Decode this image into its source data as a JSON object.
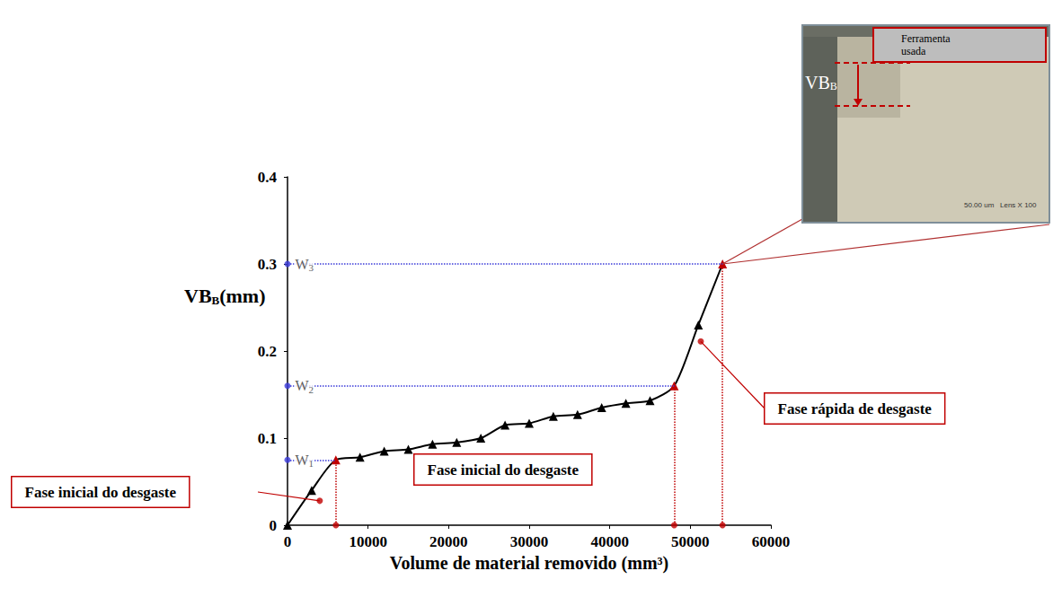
{
  "chart_data": {
    "type": "line",
    "xlabel": "Volume de material removido (mm³)",
    "ylabel": "VB",
    "ylabel_subscript": "B",
    "ylabel_unit": "(mm)",
    "x": [
      0,
      3000,
      6000,
      9000,
      12000,
      15000,
      18000,
      21000,
      24000,
      27000,
      30000,
      33000,
      36000,
      39000,
      42000,
      45000,
      48000,
      51000,
      54000
    ],
    "values": [
      0,
      0.04,
      0.075,
      0.078,
      0.085,
      0.087,
      0.093,
      0.095,
      0.1,
      0.115,
      0.117,
      0.125,
      0.127,
      0.135,
      0.14,
      0.143,
      0.16,
      0.23,
      0.3
    ],
    "color": "#000000",
    "marker": "triangle",
    "line_style": "solid",
    "xlim": [
      0,
      60000
    ],
    "xticks": [
      0,
      10000,
      20000,
      30000,
      40000,
      50000,
      60000
    ],
    "ylim": [
      0,
      0.4
    ],
    "yticks": [
      0,
      0.1,
      0.2,
      0.3,
      0.4
    ],
    "grid": false,
    "thresholds": [
      {
        "name": "W",
        "subscript": "1",
        "value": 0.075,
        "x": 6000
      },
      {
        "name": "W",
        "subscript": "2",
        "value": 0.16,
        "x": 48000
      },
      {
        "name": "W",
        "subscript": "3",
        "value": 0.3,
        "x": 54000
      }
    ],
    "annotations": [
      {
        "text": "Fase inicial do desgaste",
        "x": 4000,
        "y": 0.028
      },
      {
        "text": "Fase inicial do desgaste"
      },
      {
        "text": "Fase rápida de desgaste",
        "x": 51300,
        "y": 0.211
      }
    ],
    "inset": {
      "label": "Ferramenta usada",
      "measure": "VB",
      "measure_subscript": "B",
      "scale_text": "50.00 um   Lens X 100"
    }
  }
}
